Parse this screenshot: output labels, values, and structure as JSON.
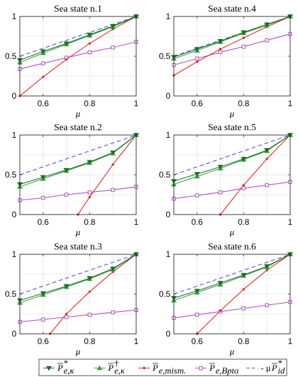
{
  "chart_data": [
    {
      "type": "line",
      "title": "Sea state n.1",
      "xlabel": "μ",
      "x": [
        0.5,
        0.6,
        0.7,
        0.8,
        0.9,
        1.0
      ],
      "xlim": [
        0.5,
        1.0
      ],
      "ylim": [
        0,
        1
      ],
      "xticks": [
        "0.6",
        "0.8",
        "1"
      ],
      "yticks": [
        "0",
        "0.5",
        "1"
      ],
      "grid": true,
      "series": [
        {
          "key": "p_star",
          "values": [
            0.45,
            0.56,
            0.66,
            0.77,
            0.88,
            1.0
          ]
        },
        {
          "key": "p_dagger",
          "values": [
            0.42,
            0.54,
            0.65,
            0.76,
            0.87,
            1.0
          ]
        },
        {
          "key": "p_mism",
          "values": [
            0.0,
            0.24,
            0.46,
            0.66,
            0.84,
            1.0
          ]
        },
        {
          "key": "p_bpto",
          "values": [
            0.34,
            0.41,
            0.48,
            0.55,
            0.61,
            0.68
          ]
        },
        {
          "key": "p_id",
          "values": [
            0.5,
            0.6,
            0.7,
            0.8,
            0.9,
            1.0
          ]
        }
      ]
    },
    {
      "type": "line",
      "title": "Sea state n.4",
      "xlabel": "μ",
      "x": [
        0.5,
        0.6,
        0.7,
        0.8,
        0.9,
        1.0
      ],
      "xlim": [
        0.5,
        1.0
      ],
      "ylim": [
        0,
        1
      ],
      "xticks": [
        "0.6",
        "0.8",
        "1"
      ],
      "yticks": [
        "0",
        "0.5",
        "1"
      ],
      "grid": true,
      "series": [
        {
          "key": "p_star",
          "values": [
            0.49,
            0.59,
            0.69,
            0.8,
            0.9,
            1.0
          ]
        },
        {
          "key": "p_dagger",
          "values": [
            0.47,
            0.57,
            0.68,
            0.79,
            0.89,
            1.0
          ]
        },
        {
          "key": "p_mism",
          "values": [
            0.26,
            0.43,
            0.59,
            0.73,
            0.87,
            1.0
          ]
        },
        {
          "key": "p_bpto",
          "values": [
            0.39,
            0.47,
            0.55,
            0.62,
            0.7,
            0.78
          ]
        },
        {
          "key": "p_id",
          "values": [
            0.5,
            0.6,
            0.7,
            0.8,
            0.9,
            1.0
          ]
        }
      ]
    },
    {
      "type": "line",
      "title": "Sea state n.2",
      "xlabel": "μ",
      "x": [
        0.5,
        0.6,
        0.7,
        0.8,
        0.9,
        1.0
      ],
      "xlim": [
        0.5,
        1.0
      ],
      "ylim": [
        0,
        1
      ],
      "xticks": [
        "0.6",
        "0.8",
        "1"
      ],
      "yticks": [
        "0",
        "0.5",
        "1"
      ],
      "grid": true,
      "series": [
        {
          "key": "p_star",
          "values": [
            0.38,
            0.47,
            0.56,
            0.66,
            0.78,
            1.0
          ]
        },
        {
          "key": "p_dagger",
          "values": [
            0.35,
            0.45,
            0.55,
            0.65,
            0.77,
            1.0
          ]
        },
        {
          "key": "p_mism",
          "x": [
            0.75,
            0.8,
            0.9,
            1.0
          ],
          "values": [
            0.0,
            0.22,
            0.63,
            1.0
          ]
        },
        {
          "key": "p_bpto",
          "values": [
            0.18,
            0.21,
            0.25,
            0.28,
            0.31,
            0.35
          ]
        },
        {
          "key": "p_id",
          "values": [
            0.5,
            0.6,
            0.7,
            0.8,
            0.9,
            1.0
          ]
        }
      ]
    },
    {
      "type": "line",
      "title": "Sea state n.5",
      "xlabel": "μ",
      "x": [
        0.5,
        0.6,
        0.7,
        0.8,
        0.9,
        1.0
      ],
      "xlim": [
        0.5,
        1.0
      ],
      "ylim": [
        0,
        1
      ],
      "xticks": [
        "0.6",
        "0.8",
        "1"
      ],
      "yticks": [
        "0",
        "0.5",
        "1"
      ],
      "grid": true,
      "series": [
        {
          "key": "p_star",
          "values": [
            0.42,
            0.51,
            0.6,
            0.7,
            0.81,
            1.0
          ]
        },
        {
          "key": "p_dagger",
          "values": [
            0.38,
            0.48,
            0.58,
            0.69,
            0.8,
            1.0
          ]
        },
        {
          "key": "p_mism",
          "x": [
            0.7,
            0.8,
            0.9,
            1.0
          ],
          "values": [
            0.0,
            0.37,
            0.7,
            1.0
          ]
        },
        {
          "key": "p_bpto",
          "values": [
            0.2,
            0.24,
            0.28,
            0.33,
            0.37,
            0.41
          ]
        },
        {
          "key": "p_id",
          "values": [
            0.5,
            0.6,
            0.7,
            0.8,
            0.9,
            1.0
          ]
        }
      ]
    },
    {
      "type": "line",
      "title": "Sea state n.3",
      "xlabel": "μ",
      "x": [
        0.5,
        0.6,
        0.7,
        0.8,
        0.9,
        1.0
      ],
      "xlim": [
        0.5,
        1.0
      ],
      "ylim": [
        0,
        1
      ],
      "xticks": [
        "0.6",
        "0.8",
        "1"
      ],
      "yticks": [
        "0",
        "0.5",
        "1"
      ],
      "grid": true,
      "series": [
        {
          "key": "p_star",
          "values": [
            0.42,
            0.51,
            0.6,
            0.7,
            0.82,
            1.0
          ]
        },
        {
          "key": "p_dagger",
          "values": [
            0.39,
            0.49,
            0.59,
            0.69,
            0.81,
            1.0
          ]
        },
        {
          "key": "p_mism",
          "x": [
            0.63,
            0.7,
            0.8,
            0.9,
            1.0
          ],
          "values": [
            0.0,
            0.25,
            0.53,
            0.78,
            1.0
          ]
        },
        {
          "key": "p_bpto",
          "values": [
            0.15,
            0.18,
            0.21,
            0.24,
            0.27,
            0.3
          ]
        },
        {
          "key": "p_id",
          "values": [
            0.5,
            0.6,
            0.7,
            0.8,
            0.9,
            1.0
          ]
        }
      ]
    },
    {
      "type": "line",
      "title": "Sea state n.6",
      "xlabel": "μ",
      "x": [
        0.5,
        0.6,
        0.7,
        0.8,
        0.9,
        1.0
      ],
      "xlim": [
        0.5,
        1.0
      ],
      "ylim": [
        0,
        1
      ],
      "xticks": [
        "0.6",
        "0.8",
        "1"
      ],
      "yticks": [
        "0",
        "0.5",
        "1"
      ],
      "grid": true,
      "series": [
        {
          "key": "p_star",
          "values": [
            0.45,
            0.54,
            0.64,
            0.74,
            0.85,
            1.0
          ]
        },
        {
          "key": "p_dagger",
          "values": [
            0.42,
            0.52,
            0.62,
            0.73,
            0.84,
            1.0
          ]
        },
        {
          "key": "p_mism",
          "x": [
            0.6,
            0.7,
            0.8,
            0.9,
            1.0
          ],
          "values": [
            0.0,
            0.29,
            0.56,
            0.8,
            1.0
          ]
        },
        {
          "key": "p_bpto",
          "values": [
            0.2,
            0.24,
            0.28,
            0.32,
            0.36,
            0.4
          ]
        },
        {
          "key": "p_id",
          "values": [
            0.5,
            0.6,
            0.7,
            0.8,
            0.9,
            1.0
          ]
        }
      ]
    }
  ],
  "legend": {
    "placement": "bottom",
    "entries": [
      {
        "key": "p_star",
        "prefix": "",
        "base": "P",
        "sup": "*",
        "sub": "e,κ",
        "color": "#1f6e2a",
        "marker": "triangle-down",
        "dash": false
      },
      {
        "key": "p_dagger",
        "prefix": "",
        "base": "P",
        "sup": "†",
        "sub": "e,κ",
        "color": "#3ea043",
        "marker": "triangle-up",
        "dash": false
      },
      {
        "key": "p_mism",
        "prefix": "",
        "base": "P",
        "sup": "",
        "sub": "e,mism.",
        "color": "#e2241c",
        "marker": "dot",
        "dash": false
      },
      {
        "key": "p_bpto",
        "prefix": "",
        "base": "P",
        "sup": "",
        "sub": "e,Bpto",
        "color": "#b04fc4",
        "marker": "square",
        "dash": false
      },
      {
        "key": "p_id",
        "prefix": "- μ",
        "base": "P",
        "sup": "*",
        "sub": "id",
        "color": "#4a50e0",
        "marker": "none",
        "dash": true
      }
    ]
  }
}
